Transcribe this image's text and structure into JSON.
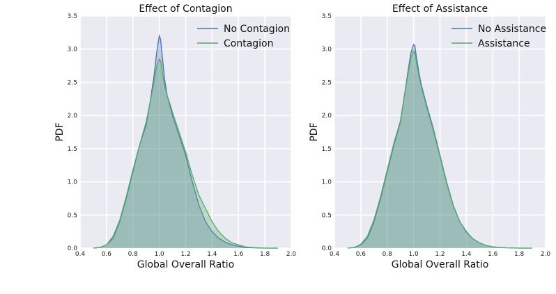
{
  "chart_data": [
    {
      "type": "area",
      "title": "Effect of Contagion",
      "xlabel": "Global Overall Ratio",
      "ylabel": "PDF",
      "xlim": [
        0.4,
        2.0
      ],
      "ylim": [
        0.0,
        3.5
      ],
      "xticks": [
        "0.4",
        "0.6",
        "0.8",
        "1.0",
        "1.2",
        "1.4",
        "1.6",
        "1.8",
        "2.0"
      ],
      "yticks": [
        "0.0",
        "0.5",
        "1.0",
        "1.5",
        "2.0",
        "2.5",
        "3.0",
        "3.5"
      ],
      "grid": true,
      "legend": "top-right",
      "series": [
        {
          "name": "No Contagion",
          "color": "#4c72b0",
          "x": [
            0.5,
            0.55,
            0.6,
            0.65,
            0.7,
            0.75,
            0.8,
            0.85,
            0.9,
            0.93,
            0.96,
            0.98,
            1.0,
            1.01,
            1.02,
            1.04,
            1.06,
            1.08,
            1.1,
            1.15,
            1.2,
            1.25,
            1.3,
            1.35,
            1.4,
            1.45,
            1.5,
            1.55,
            1.6,
            1.65,
            1.7,
            1.8,
            1.9
          ],
          "y": [
            0.0,
            0.01,
            0.05,
            0.15,
            0.4,
            0.75,
            1.15,
            1.55,
            1.85,
            2.2,
            2.6,
            2.95,
            3.2,
            3.15,
            2.95,
            2.55,
            2.3,
            2.15,
            2.0,
            1.7,
            1.4,
            1.0,
            0.65,
            0.4,
            0.25,
            0.15,
            0.09,
            0.05,
            0.03,
            0.01,
            0.005,
            0.0,
            0.0
          ]
        },
        {
          "name": "Contagion",
          "color": "#55a868",
          "x": [
            0.5,
            0.55,
            0.6,
            0.65,
            0.7,
            0.75,
            0.8,
            0.85,
            0.9,
            0.93,
            0.96,
            0.98,
            1.0,
            1.01,
            1.02,
            1.04,
            1.06,
            1.08,
            1.1,
            1.15,
            1.2,
            1.25,
            1.3,
            1.35,
            1.4,
            1.45,
            1.5,
            1.55,
            1.6,
            1.65,
            1.7,
            1.8,
            1.9
          ],
          "y": [
            0.0,
            0.01,
            0.05,
            0.18,
            0.42,
            0.78,
            1.18,
            1.55,
            1.9,
            2.2,
            2.5,
            2.75,
            2.85,
            2.82,
            2.7,
            2.45,
            2.3,
            2.18,
            2.05,
            1.75,
            1.45,
            1.1,
            0.8,
            0.6,
            0.4,
            0.25,
            0.15,
            0.08,
            0.05,
            0.02,
            0.01,
            0.0,
            0.0
          ]
        }
      ]
    },
    {
      "type": "area",
      "title": "Effect of Assistance",
      "xlabel": "Global Overall Ratio",
      "ylabel": "PDF",
      "xlim": [
        0.4,
        2.0
      ],
      "ylim": [
        0.0,
        3.5
      ],
      "xticks": [
        "0.4",
        "0.6",
        "0.8",
        "1.0",
        "1.2",
        "1.4",
        "1.6",
        "1.8",
        "2.0"
      ],
      "yticks": [
        "0.0",
        "0.5",
        "1.0",
        "1.5",
        "2.0",
        "2.5",
        "3.0",
        "3.5"
      ],
      "grid": true,
      "legend": "top-right",
      "series": [
        {
          "name": "No Assistance",
          "color": "#4c72b0",
          "x": [
            0.5,
            0.55,
            0.6,
            0.65,
            0.7,
            0.75,
            0.8,
            0.85,
            0.9,
            0.93,
            0.96,
            0.98,
            1.0,
            1.01,
            1.02,
            1.04,
            1.06,
            1.08,
            1.1,
            1.15,
            1.2,
            1.25,
            1.3,
            1.35,
            1.4,
            1.45,
            1.5,
            1.55,
            1.6,
            1.65,
            1.7,
            1.8,
            1.9
          ],
          "y": [
            0.0,
            0.01,
            0.05,
            0.15,
            0.4,
            0.75,
            1.15,
            1.55,
            1.9,
            2.3,
            2.7,
            2.95,
            3.07,
            3.05,
            2.9,
            2.65,
            2.45,
            2.3,
            2.15,
            1.8,
            1.4,
            1.0,
            0.65,
            0.4,
            0.25,
            0.14,
            0.08,
            0.04,
            0.02,
            0.01,
            0.005,
            0.0,
            0.0
          ]
        },
        {
          "name": "Assistance",
          "color": "#55a868",
          "x": [
            0.5,
            0.55,
            0.6,
            0.65,
            0.7,
            0.75,
            0.8,
            0.85,
            0.9,
            0.93,
            0.96,
            0.98,
            1.0,
            1.01,
            1.02,
            1.04,
            1.06,
            1.08,
            1.1,
            1.15,
            1.2,
            1.25,
            1.3,
            1.35,
            1.4,
            1.45,
            1.5,
            1.55,
            1.6,
            1.65,
            1.7,
            1.8,
            1.9
          ],
          "y": [
            0.0,
            0.01,
            0.06,
            0.18,
            0.43,
            0.78,
            1.18,
            1.58,
            1.92,
            2.3,
            2.65,
            2.88,
            2.97,
            2.95,
            2.82,
            2.6,
            2.42,
            2.27,
            2.12,
            1.77,
            1.38,
            0.98,
            0.64,
            0.4,
            0.24,
            0.14,
            0.08,
            0.04,
            0.02,
            0.01,
            0.005,
            0.0,
            0.0
          ]
        }
      ]
    }
  ]
}
